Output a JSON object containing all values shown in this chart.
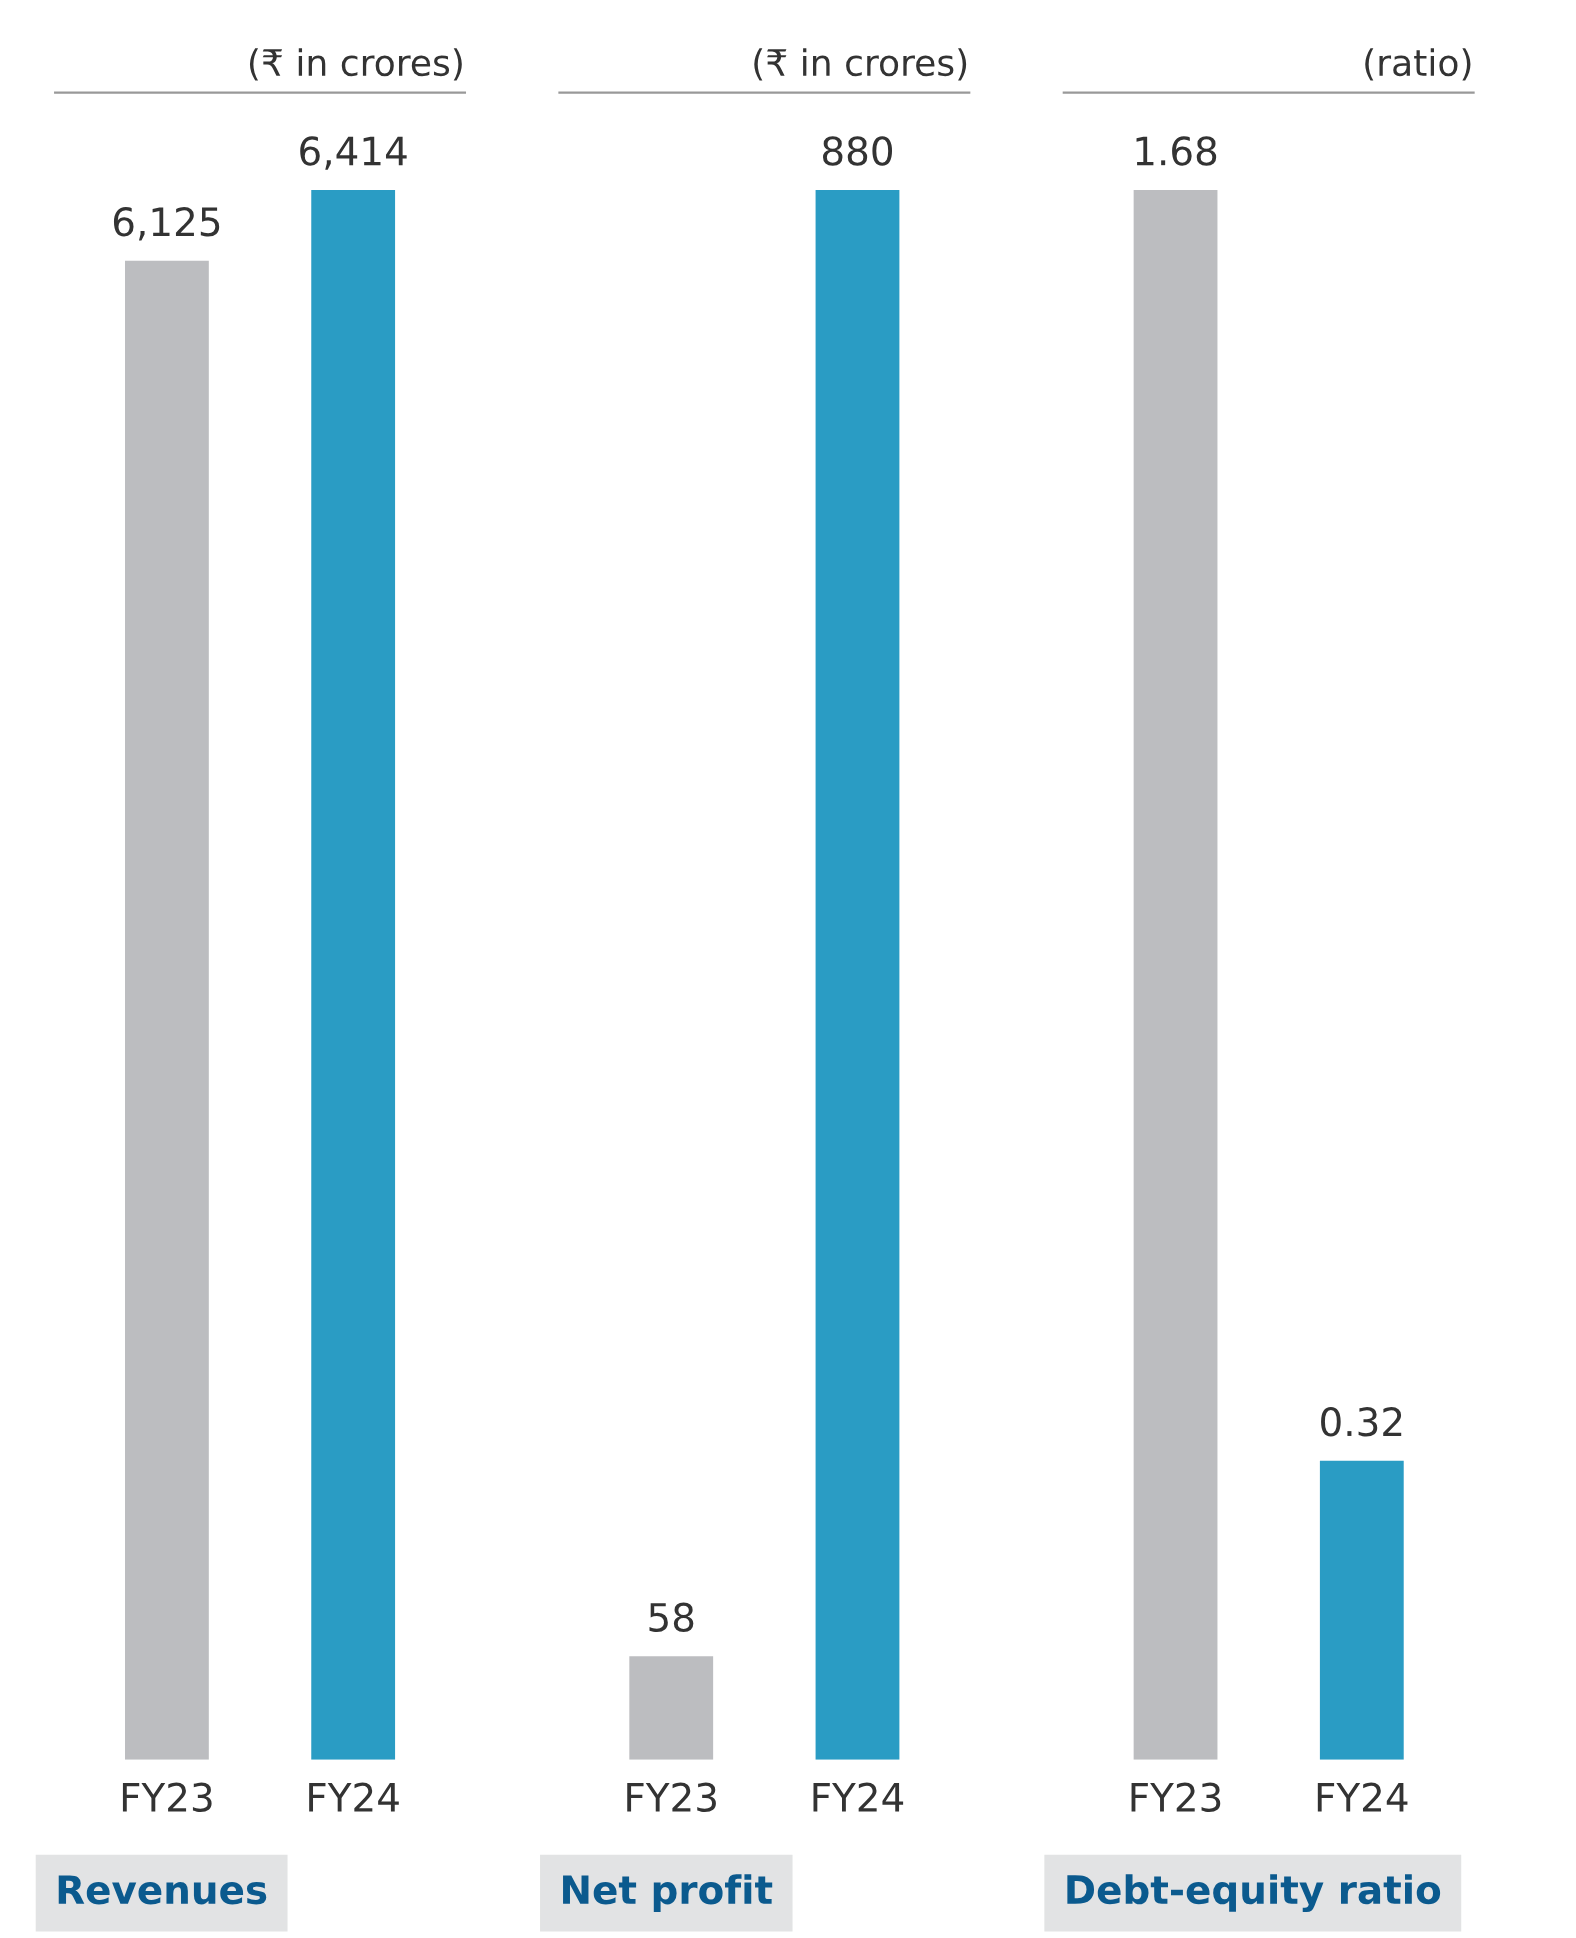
{
  "chart_data": [
    {
      "type": "bar",
      "title": "Revenues",
      "subtitle": "(₹ in crores)",
      "categories": [
        "FY23",
        "FY24"
      ],
      "values": [
        6125,
        6414
      ],
      "value_labels": [
        "6,125",
        "6,414"
      ],
      "colors": [
        "#bcbdc0",
        "#2a9cc4"
      ],
      "tick_labels": "x"
    },
    {
      "type": "bar",
      "title": "Net profit",
      "subtitle": "(₹ in crores)",
      "categories": [
        "FY23",
        "FY24"
      ],
      "values": [
        58,
        880
      ],
      "value_labels": [
        "58",
        "880"
      ],
      "colors": [
        "#bcbdc0",
        "#2a9cc4"
      ],
      "tick_labels": "x"
    },
    {
      "type": "bar",
      "title": "Debt-equity ratio",
      "subtitle": "(ratio)",
      "categories": [
        "FY23",
        "FY24"
      ],
      "values": [
        1.68,
        0.32
      ],
      "value_labels": [
        "1.68",
        "0.32"
      ],
      "colors": [
        "#bcbdc0",
        "#2a9cc4"
      ],
      "tick_labels": "x"
    }
  ]
}
